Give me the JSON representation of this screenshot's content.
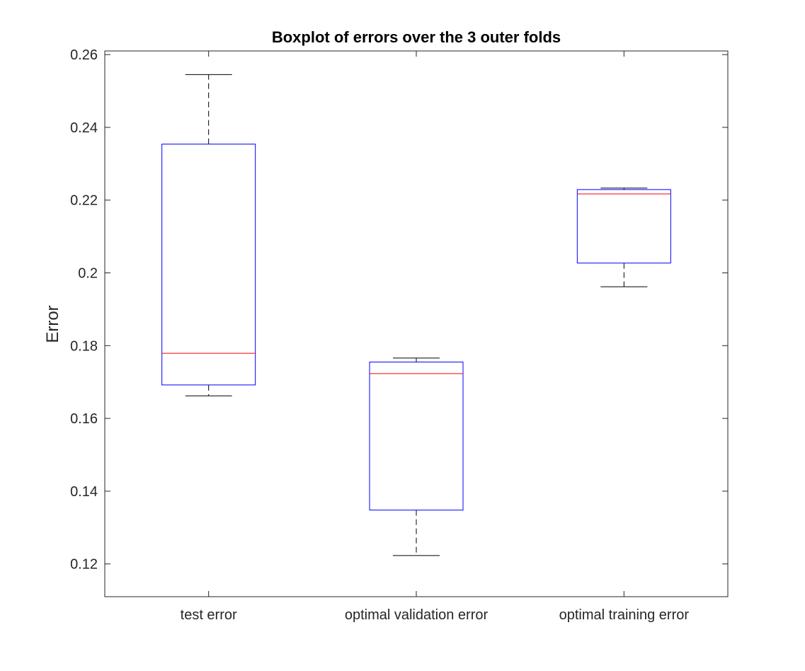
{
  "chart_data": {
    "type": "boxplot",
    "title": "Boxplot of errors over the 3 outer folds",
    "xlabel": "",
    "ylabel": "Error",
    "ylim": [
      0.111,
      0.261
    ],
    "yticks": [
      0.12,
      0.14,
      0.16,
      0.18,
      0.2,
      0.22,
      0.24,
      0.26
    ],
    "ytick_labels": [
      "0.12",
      "0.14",
      "0.16",
      "0.18",
      "0.2",
      "0.22",
      "0.24",
      "0.26"
    ],
    "grid": false,
    "categories": [
      "test error",
      "optimal validation error",
      "optimal training error"
    ],
    "boxes": [
      {
        "category": "test error",
        "whisker_low": 0.1662,
        "q1": 0.1692,
        "median": 0.1779,
        "q3": 0.2354,
        "whisker_high": 0.2545
      },
      {
        "category": "optimal validation error",
        "whisker_low": 0.1223,
        "q1": 0.1348,
        "median": 0.1723,
        "q3": 0.1755,
        "whisker_high": 0.1766
      },
      {
        "category": "optimal training error",
        "whisker_low": 0.1962,
        "q1": 0.2027,
        "median": 0.2217,
        "q3": 0.2229,
        "whisker_high": 0.2233
      }
    ],
    "colors": {
      "box": "#0000ff",
      "median": "#ff0000",
      "whisker": "#000000",
      "axis": "#262626"
    }
  }
}
